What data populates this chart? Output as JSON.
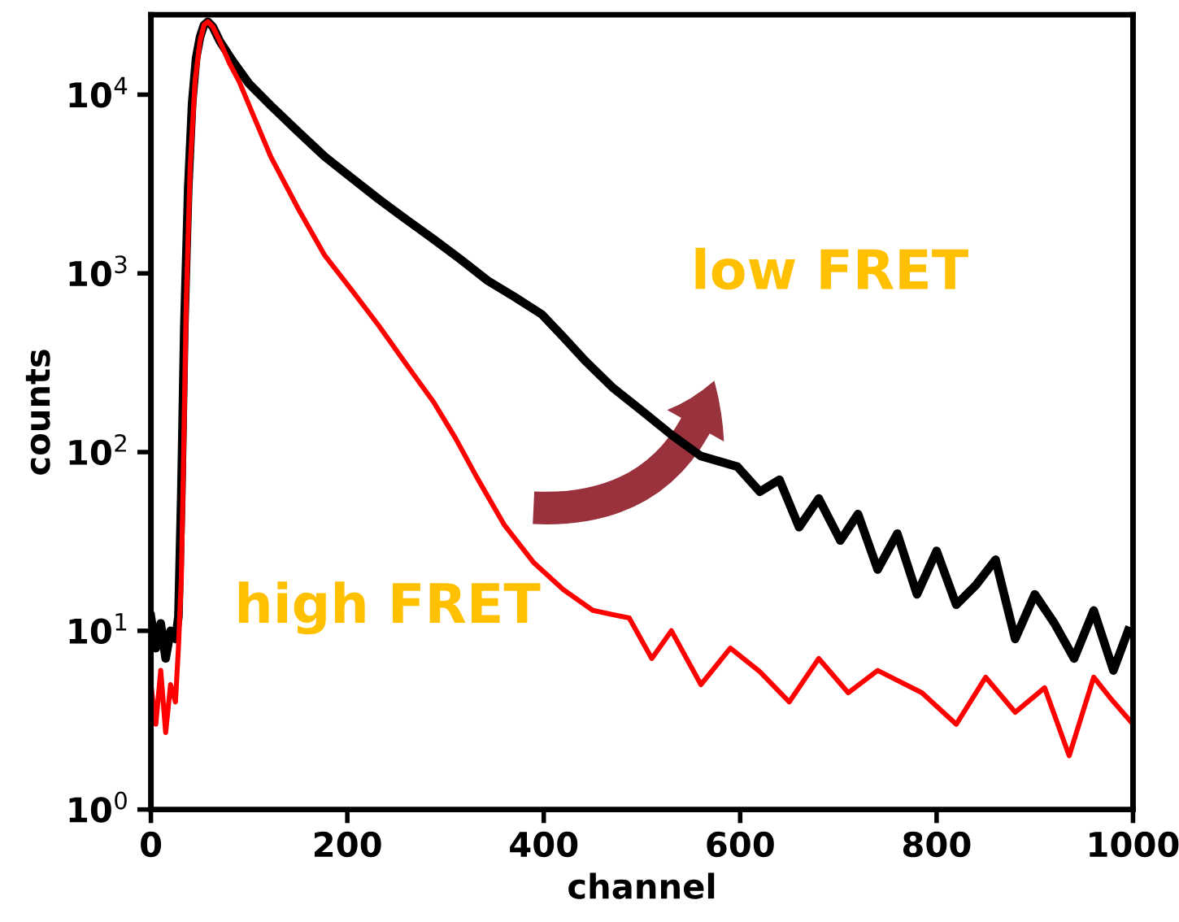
{
  "chart_data": {
    "type": "line",
    "xlabel": "channel",
    "ylabel": "counts",
    "log": "y",
    "xlim": [
      0,
      1000
    ],
    "ylim": [
      1,
      28000
    ],
    "xticks": [
      0,
      200,
      400,
      600,
      800,
      1000
    ],
    "yticks": [
      {
        "value": 1,
        "label": "10$^{0}$"
      },
      {
        "value": 10,
        "label": "10$^{1}$"
      },
      {
        "value": 100,
        "label": "10$^{2}$"
      },
      {
        "value": 1000,
        "label": "10$^{3}$"
      },
      {
        "value": 10000,
        "label": "10$^{4}$"
      }
    ],
    "grid": false,
    "line_style": "solid",
    "marker": "none",
    "annotations": [
      "low FRET",
      "high FRET"
    ],
    "series": [
      {
        "color": "#000000",
        "x": [
          0,
          5,
          10,
          15,
          20,
          25,
          28,
          31,
          34,
          38,
          42,
          46,
          50,
          54,
          58,
          63,
          70,
          83,
          100,
          122,
          150,
          177,
          205,
          232,
          260,
          288,
          315,
          343,
          370,
          398,
          420,
          442,
          470,
          500,
          530,
          560,
          597,
          620,
          640,
          660,
          680,
          702,
          720,
          740,
          760,
          780,
          800,
          820,
          840,
          860,
          880,
          900,
          920,
          940,
          960,
          980,
          995
        ],
        "values": [
          12,
          8,
          11,
          7,
          10,
          9,
          12,
          60,
          500,
          3000,
          9000,
          16000,
          21000,
          24500,
          25600,
          24000,
          20000,
          15500,
          11500,
          8700,
          6200,
          4500,
          3400,
          2600,
          2000,
          1550,
          1200,
          910,
          740,
          590,
          440,
          325,
          230,
          170,
          125,
          95,
          83,
          60,
          70,
          38,
          55,
          32,
          45,
          22,
          35,
          16,
          28,
          14,
          18,
          25,
          9,
          16,
          11,
          7,
          13,
          6,
          10
        ]
      },
      {
        "color": "#ff0000",
        "x": [
          0,
          5,
          10,
          15,
          20,
          25,
          28,
          31,
          33,
          36,
          40,
          45,
          50,
          54,
          58,
          63,
          70,
          80,
          90,
          105,
          122,
          150,
          177,
          205,
          232,
          260,
          288,
          310,
          332,
          360,
          390,
          420,
          450,
          487,
          510,
          530,
          560,
          590,
          620,
          650,
          680,
          710,
          740,
          785,
          820,
          850,
          880,
          910,
          935,
          960,
          977,
          1000
        ],
        "values": [
          5,
          3,
          6,
          2.7,
          5,
          4,
          8,
          20,
          80,
          700,
          4000,
          12000,
          20000,
          24500,
          25600,
          24000,
          20000,
          15000,
          11800,
          7500,
          4500,
          2300,
          1260,
          800,
          510,
          310,
          190,
          120,
          72,
          39,
          24,
          17,
          13,
          11.8,
          7,
          10,
          5,
          8,
          5.9,
          4,
          7,
          4.5,
          6,
          4.5,
          3,
          5.5,
          3.5,
          4.8,
          2,
          5.5,
          4.2,
          3
        ]
      }
    ]
  }
}
